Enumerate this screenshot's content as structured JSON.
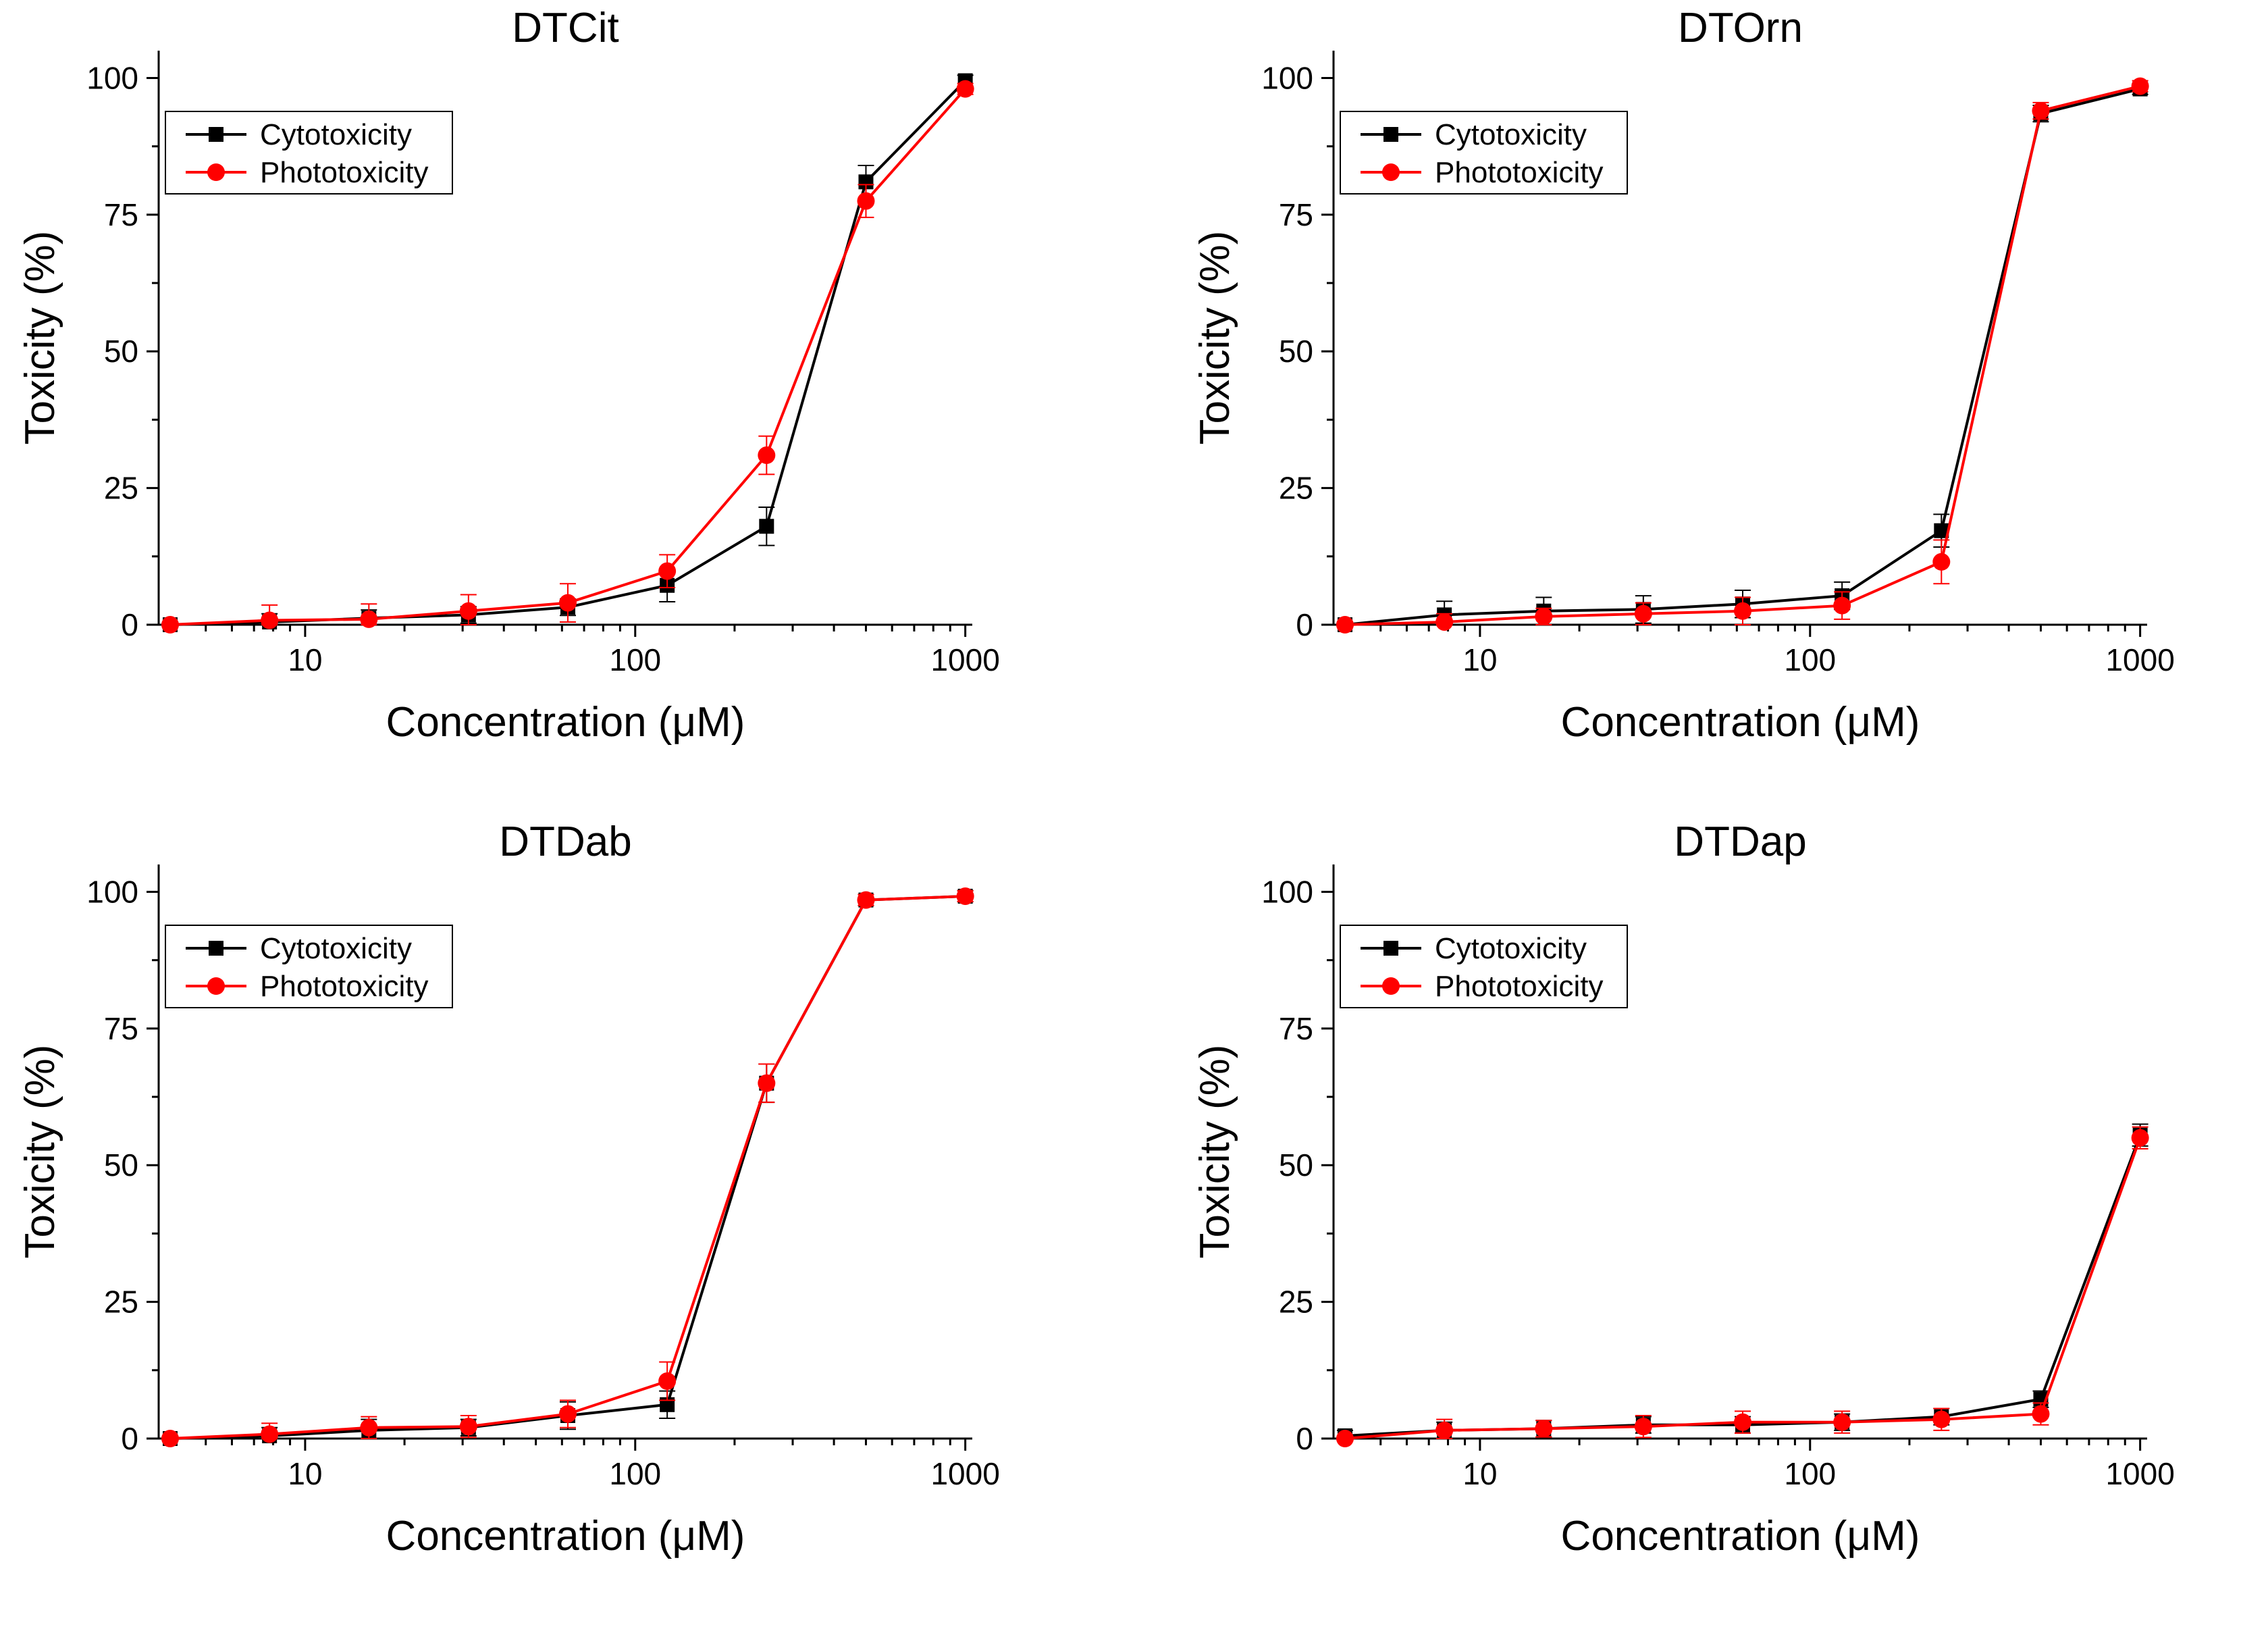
{
  "figure": {
    "background": "#ffffff",
    "series_colors": {
      "Cytotoxicity": "#000000",
      "Phototoxicity": "#ff0000"
    }
  },
  "chart_data": [
    {
      "type": "line",
      "title": "DTCit",
      "xlabel": "Concentration (μM)",
      "ylabel": "Toxicity (%)",
      "xscale": "log",
      "xlim": [
        3.6,
        1050
      ],
      "ylim": [
        0,
        105
      ],
      "xticks": [
        10,
        100,
        1000
      ],
      "xtick_labels": [
        "10",
        "100",
        "1000"
      ],
      "yticks": [
        0,
        25,
        50,
        75,
        100
      ],
      "ytick_labels": [
        "0",
        "25",
        "50",
        "75",
        "100"
      ],
      "legend": "top-left",
      "x": [
        3.9,
        7.8,
        15.6,
        31.25,
        62.5,
        125,
        250,
        500,
        1000
      ],
      "series": [
        {
          "name": "Cytotoxicity",
          "marker": "square",
          "values": [
            0,
            0.5,
            1.2,
            1.8,
            3.2,
            7.2,
            18,
            81,
            99.5
          ],
          "errors": [
            0.5,
            1.5,
            1.5,
            1.5,
            1.5,
            3,
            3.5,
            3,
            1
          ]
        },
        {
          "name": "Phototoxicity",
          "marker": "circle",
          "values": [
            0,
            0.8,
            1,
            2.5,
            4,
            9.8,
            31,
            77.5,
            98
          ],
          "errors": [
            0.5,
            2.8,
            2.8,
            3,
            3.5,
            3,
            3.5,
            3,
            1
          ]
        }
      ]
    },
    {
      "type": "line",
      "title": "DTOrn",
      "xlabel": "Concentration (μM)",
      "ylabel": "Toxicity (%)",
      "xscale": "log",
      "xlim": [
        3.6,
        1050
      ],
      "ylim": [
        0,
        105
      ],
      "xticks": [
        10,
        100,
        1000
      ],
      "xtick_labels": [
        "10",
        "100",
        "1000"
      ],
      "yticks": [
        0,
        25,
        50,
        75,
        100
      ],
      "ytick_labels": [
        "0",
        "25",
        "50",
        "75",
        "100"
      ],
      "legend": "top-left",
      "x": [
        3.9,
        7.8,
        15.6,
        31.25,
        62.5,
        125,
        250,
        500,
        1000
      ],
      "series": [
        {
          "name": "Cytotoxicity",
          "marker": "square",
          "values": [
            0,
            1.8,
            2.5,
            2.8,
            3.8,
            5.3,
            17.2,
            93.5,
            98
          ],
          "errors": [
            0.5,
            2.5,
            2.5,
            2.5,
            2.5,
            2.5,
            3,
            1.5,
            1
          ]
        },
        {
          "name": "Phototoxicity",
          "marker": "circle",
          "values": [
            0,
            0.5,
            1.5,
            2,
            2.5,
            3.5,
            11.5,
            94,
            98.5
          ],
          "errors": [
            0.5,
            1.5,
            1.5,
            2,
            2.5,
            2.5,
            4,
            1.5,
            1
          ]
        }
      ]
    },
    {
      "type": "line",
      "title": "DTDab",
      "xlabel": "Concentration (μM)",
      "ylabel": "Toxicity (%)",
      "xscale": "log",
      "xlim": [
        3.6,
        1050
      ],
      "ylim": [
        0,
        105
      ],
      "xticks": [
        10,
        100,
        1000
      ],
      "xtick_labels": [
        "10",
        "100",
        "1000"
      ],
      "yticks": [
        0,
        25,
        50,
        75,
        100
      ],
      "ytick_labels": [
        "0",
        "25",
        "50",
        "75",
        "100"
      ],
      "legend": "top-left",
      "x": [
        3.9,
        7.8,
        15.6,
        31.25,
        62.5,
        125,
        250,
        500,
        1000
      ],
      "series": [
        {
          "name": "Cytotoxicity",
          "marker": "square",
          "values": [
            0,
            0.5,
            1.5,
            2,
            4.2,
            6.2,
            65,
            98.5,
            99.2
          ],
          "errors": [
            0.5,
            1.5,
            2,
            1.5,
            2.5,
            2.5,
            3.5,
            1,
            1
          ]
        },
        {
          "name": "Phototoxicity",
          "marker": "circle",
          "values": [
            0,
            0.8,
            2,
            2.2,
            4.5,
            10.5,
            65,
            98.5,
            99.2
          ],
          "errors": [
            0.5,
            2,
            2,
            2,
            2.5,
            3.5,
            3.5,
            1,
            1
          ]
        }
      ]
    },
    {
      "type": "line",
      "title": "DTDap",
      "xlabel": "Concentration (μM)",
      "ylabel": "Toxicity (%)",
      "xscale": "log",
      "xlim": [
        3.6,
        1050
      ],
      "ylim": [
        0,
        105
      ],
      "xticks": [
        10,
        100,
        1000
      ],
      "xtick_labels": [
        "10",
        "100",
        "1000"
      ],
      "yticks": [
        0,
        25,
        50,
        75,
        100
      ],
      "ytick_labels": [
        "0",
        "25",
        "50",
        "75",
        "100"
      ],
      "legend": "top-left",
      "x": [
        3.9,
        7.8,
        15.6,
        31.25,
        62.5,
        125,
        250,
        500,
        1000
      ],
      "series": [
        {
          "name": "Cytotoxicity",
          "marker": "square",
          "values": [
            0.5,
            1.5,
            1.8,
            2.5,
            2.5,
            3,
            4,
            7.2,
            55.5
          ],
          "errors": [
            1,
            1.5,
            1.5,
            1.5,
            1.5,
            1.5,
            1.5,
            1.5,
            2
          ]
        },
        {
          "name": "Phototoxicity",
          "marker": "circle",
          "values": [
            0,
            1.5,
            1.8,
            2.2,
            3,
            3,
            3.5,
            4.5,
            55
          ],
          "errors": [
            0.5,
            2,
            1.5,
            2,
            2,
            2,
            2,
            2,
            2
          ]
        }
      ]
    }
  ]
}
